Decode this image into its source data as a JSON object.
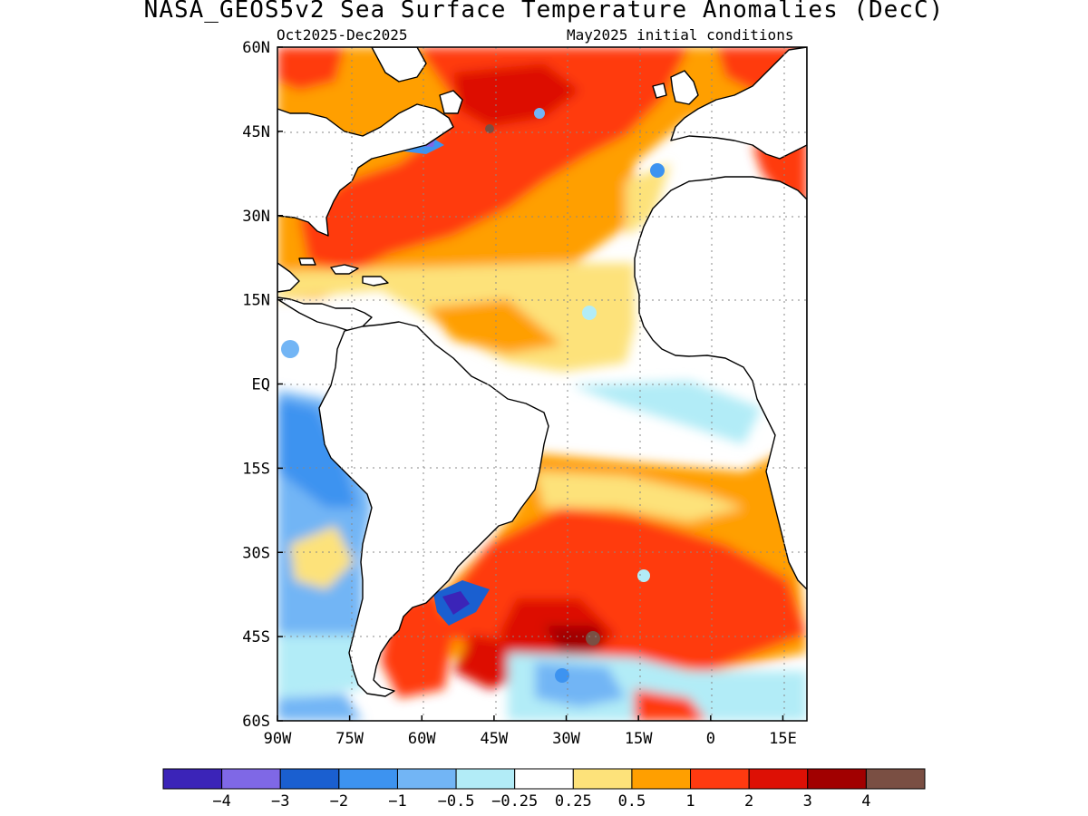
{
  "title": "NASA_GEOS5v2 Sea Surface Temperature Anomalies (DecC)",
  "subtitle_left": "Oct2025-Dec2025",
  "subtitle_right": "May2025 initial conditions",
  "map": {
    "lat_range": [
      -60,
      60
    ],
    "lon_range": [
      -90,
      20
    ],
    "lat_ticks": [
      {
        "v": 60,
        "label": "60N"
      },
      {
        "v": 45,
        "label": "45N"
      },
      {
        "v": 30,
        "label": "30N"
      },
      {
        "v": 15,
        "label": "15N"
      },
      {
        "v": 0,
        "label": "EQ"
      },
      {
        "v": -15,
        "label": "15S"
      },
      {
        "v": -30,
        "label": "30S"
      },
      {
        "v": -45,
        "label": "45S"
      },
      {
        "v": -60,
        "label": "60S"
      }
    ],
    "lon_ticks": [
      {
        "v": -90,
        "label": "90W"
      },
      {
        "v": -75,
        "label": "75W"
      },
      {
        "v": -60,
        "label": "60W"
      },
      {
        "v": -45,
        "label": "45W"
      },
      {
        "v": -30,
        "label": "30W"
      },
      {
        "v": -15,
        "label": "15W"
      },
      {
        "v": 0,
        "label": "0"
      },
      {
        "v": 15,
        "label": "15E"
      }
    ],
    "grid": "dotted",
    "land_color": "#ffffff"
  },
  "colorbar": {
    "colors": [
      "#3b24b8",
      "#7f68e6",
      "#1a5fd0",
      "#3d93f0",
      "#72b5f5",
      "#b2ecf7",
      "#ffffff",
      "#fde27a",
      "#ff9f00",
      "#ff3a10",
      "#dd1005",
      "#a10000",
      "#7a4f43"
    ],
    "labels": [
      "-4",
      "-3",
      "-2",
      "-1",
      "-0.5",
      "-0.25",
      "0.25",
      "0.5",
      "1",
      "2",
      "3",
      "4"
    ]
  }
}
